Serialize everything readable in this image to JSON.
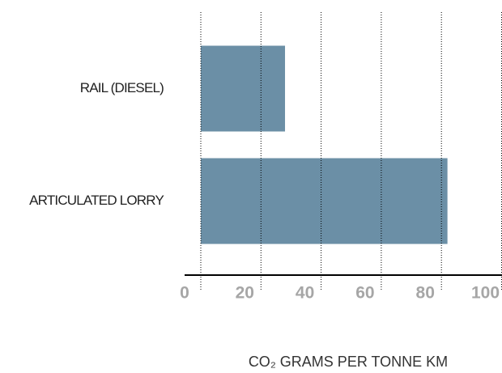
{
  "chart_data": {
    "type": "hbar",
    "categories": [
      "RAIL (DIESEL)",
      "ARTICULATED LORRY"
    ],
    "values": [
      28,
      82
    ],
    "color": "#6b8fa6",
    "xlabel": "CO₂ GRAMS PER TONNE KM",
    "xlim": [
      0,
      100
    ],
    "xticks": [
      0,
      20,
      40,
      60,
      80,
      100
    ],
    "grid": true
  }
}
